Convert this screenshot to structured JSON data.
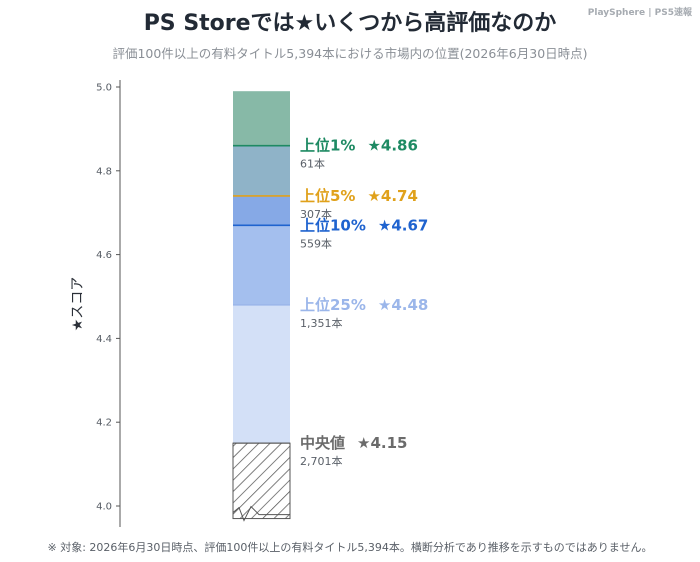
{
  "brand": "PlaySphere | PS5速報",
  "chart_data": {
    "type": "bar",
    "title": "PS Storeでは★いくつから高評価なのか",
    "subtitle": "評価100件以上の有料タイトル5,394本における市場内の位置(2026年6月30日時点)",
    "ylabel": "★スコア",
    "ylim": [
      3.96,
      5.0
    ],
    "yticks": [
      4.0,
      4.2,
      4.4,
      4.6,
      4.8,
      5.0
    ],
    "ytick_labels": [
      "4.0",
      "4.2",
      "4.4",
      "4.6",
      "4.8",
      "5.0"
    ],
    "bar_top": 4.99,
    "bar_bottom": 3.97,
    "segments": [
      {
        "from": 4.86,
        "to": 4.99,
        "color": "#87b9a7"
      },
      {
        "from": 4.74,
        "to": 4.86,
        "color": "#8fb3c8"
      },
      {
        "from": 4.67,
        "to": 4.74,
        "color": "#86a9e6"
      },
      {
        "from": 4.48,
        "to": 4.67,
        "color": "#a4bfee"
      },
      {
        "from": 4.15,
        "to": 4.48,
        "color": "#d3e0f7"
      }
    ],
    "hatch_region": {
      "from": 3.97,
      "to": 4.15
    },
    "benchmarks": [
      {
        "label": "上位1%",
        "score": 4.86,
        "score_text": "★4.86",
        "count_text": "61本",
        "color": "#1e8a63"
      },
      {
        "label": "上位5%",
        "score": 4.74,
        "score_text": "★4.74",
        "count_text": "307本",
        "color": "#e0a11b"
      },
      {
        "label": "上位10%",
        "score": 4.67,
        "score_text": "★4.67",
        "count_text": "559本",
        "color": "#1f63cf"
      },
      {
        "label": "上位25%",
        "score": 4.48,
        "score_text": "★4.48",
        "count_text": "1,351本",
        "color": "#9bb6ea"
      },
      {
        "label": "中央値",
        "score": 4.15,
        "score_text": "★4.15",
        "count_text": "2,701本",
        "color": "#6b6b6b"
      }
    ]
  },
  "footnote": "※ 対象: 2026年6月30日時点、評価100件以上の有料タイトル5,394本。横断分析であり推移を示すものではありません。"
}
